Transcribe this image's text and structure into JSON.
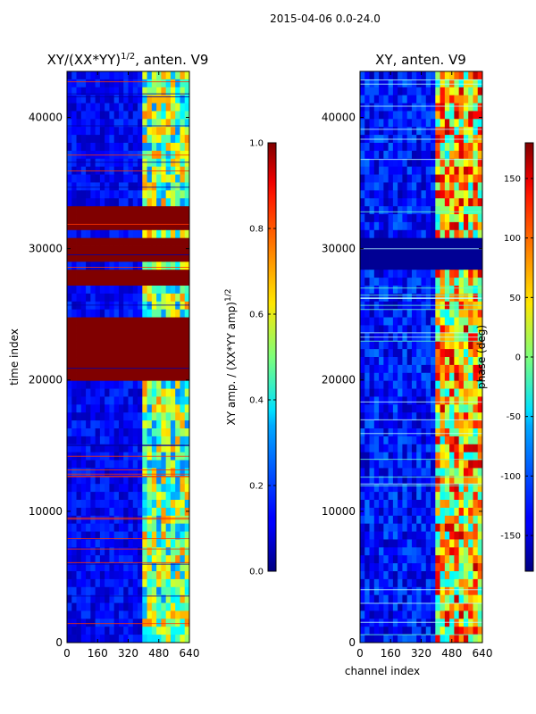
{
  "figure": {
    "suptitle": "2015-04-06 0.0-24.0"
  },
  "chart_data": [
    {
      "type": "heatmap",
      "title": "XY/(XX*YY)",
      "title_exponent": "1/2",
      "title_suffix": ", anten. V9",
      "xlabel": "",
      "ylabel": "time index",
      "x_ticks": [
        0,
        160,
        320,
        480,
        640
      ],
      "y_ticks": [
        0,
        10000,
        20000,
        30000,
        40000
      ],
      "xlim": [
        0,
        640
      ],
      "ylim": [
        0,
        43500
      ],
      "colormap": "jet",
      "colorbar": {
        "label": "XY amp. / (XX*YY amp)",
        "label_exponent": "1/2",
        "range": [
          0.0,
          1.0
        ],
        "ticks": [
          "0.0",
          "0.2",
          "0.4",
          "0.6",
          "0.8",
          "1.0"
        ]
      },
      "saturated_time_bands": [
        [
          20000,
          25000
        ],
        [
          27000,
          28400
        ],
        [
          28800,
          31000
        ],
        [
          31200,
          33000
        ]
      ],
      "active_channel_band": [
        400,
        640
      ]
    },
    {
      "type": "heatmap",
      "title": "XY, anten. V9",
      "xlabel": "channel index",
      "ylabel": "",
      "x_ticks": [
        0,
        160,
        320,
        480,
        640
      ],
      "y_ticks": [
        0,
        10000,
        20000,
        30000,
        40000
      ],
      "xlim": [
        0,
        640
      ],
      "ylim": [
        0,
        43500
      ],
      "colormap": "jet",
      "colorbar": {
        "label": "phase (deg)",
        "range": [
          -180,
          180
        ],
        "ticks": [
          "-150",
          "-100",
          "-50",
          "0",
          "50",
          "100",
          "150"
        ]
      },
      "masked_time_bands": [
        [
          28500,
          31000
        ]
      ],
      "active_channel_band": [
        400,
        640
      ]
    }
  ]
}
